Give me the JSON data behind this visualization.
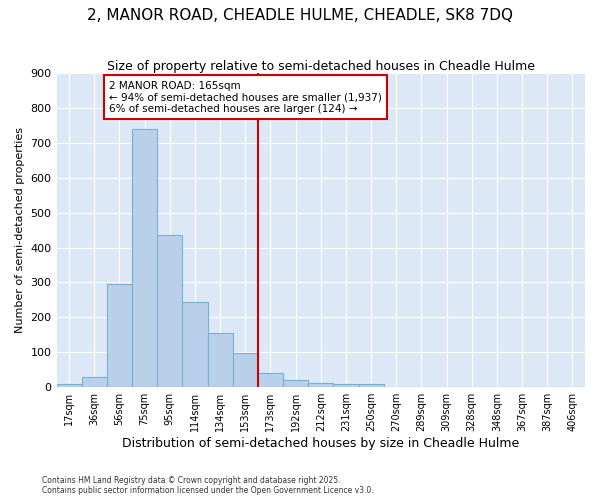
{
  "title": "2, MANOR ROAD, CHEADLE HULME, CHEADLE, SK8 7DQ",
  "subtitle": "Size of property relative to semi-detached houses in Cheadle Hulme",
  "xlabel": "Distribution of semi-detached houses by size in Cheadle Hulme",
  "ylabel": "Number of semi-detached properties",
  "categories": [
    "17sqm",
    "36sqm",
    "56sqm",
    "75sqm",
    "95sqm",
    "114sqm",
    "134sqm",
    "153sqm",
    "173sqm",
    "192sqm",
    "212sqm",
    "231sqm",
    "250sqm",
    "270sqm",
    "289sqm",
    "309sqm",
    "328sqm",
    "348sqm",
    "367sqm",
    "387sqm",
    "406sqm"
  ],
  "values": [
    8,
    30,
    295,
    740,
    435,
    245,
    155,
    98,
    40,
    20,
    13,
    10,
    10,
    0,
    0,
    0,
    0,
    0,
    0,
    0,
    0
  ],
  "bar_color": "#b8d0ea",
  "bar_edge_color": "#7aafd4",
  "vline_color": "#cc0000",
  "annotation_title": "2 MANOR ROAD: 165sqm",
  "annotation_line1": "← 94% of semi-detached houses are smaller (1,937)",
  "annotation_line2": "6% of semi-detached houses are larger (124) →",
  "annotation_box_color": "#cc0000",
  "ylim": [
    0,
    900
  ],
  "yticks": [
    0,
    100,
    200,
    300,
    400,
    500,
    600,
    700,
    800,
    900
  ],
  "footnote1": "Contains HM Land Registry data © Crown copyright and database right 2025.",
  "footnote2": "Contains public sector information licensed under the Open Government Licence v3.0.",
  "bg_color": "#dce8f5",
  "fig_bg_color": "#ffffff",
  "title_fontsize": 11,
  "subtitle_fontsize": 9,
  "xlabel_fontsize": 9,
  "ylabel_fontsize": 8
}
